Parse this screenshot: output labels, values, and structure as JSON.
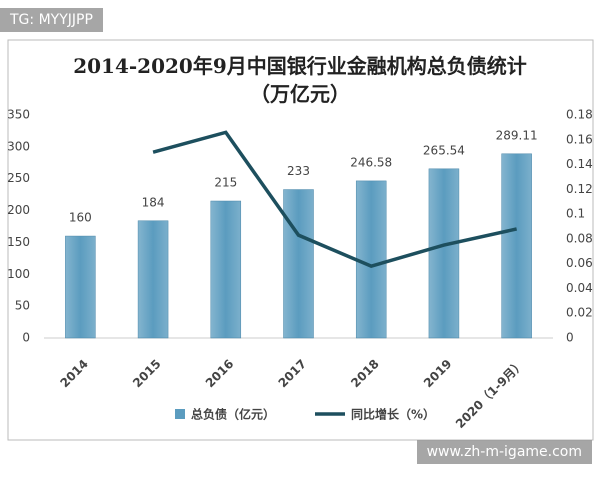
{
  "watermarks": [
    "TG: MYYJJPP",
    "www.zh-m-igame.com"
  ],
  "chart_data": {
    "type": "bar-line",
    "title": "2014-2020年9月中国银行业金融机构总负债统计（万亿元）",
    "categories": [
      "2014",
      "2015",
      "2016",
      "2017",
      "2018",
      "2019",
      "2020（1-9月）"
    ],
    "series": [
      {
        "name": "总负债（亿元）",
        "color": "#5b9cbf",
        "type": "bar",
        "values": [
          160,
          184,
          215,
          233,
          246.58,
          265.54,
          289.11
        ]
      },
      {
        "name": "同比增长（%）",
        "color": "#1d4f5e",
        "type": "line",
        "axis": "y2",
        "values": [
          null,
          0.15,
          0.166,
          0.083,
          0.058,
          0.075,
          0.088
        ]
      }
    ],
    "ylim": [
      0,
      350
    ],
    "yticks": [
      0,
      50,
      100,
      150,
      200,
      250,
      300,
      350
    ],
    "y2lim": [
      0,
      0.18
    ],
    "y2ticks": [
      0,
      0.02,
      0.04,
      0.06,
      0.08,
      0.1,
      0.12,
      0.14,
      0.16,
      0.18
    ],
    "grid": false,
    "legend": "bottom"
  }
}
